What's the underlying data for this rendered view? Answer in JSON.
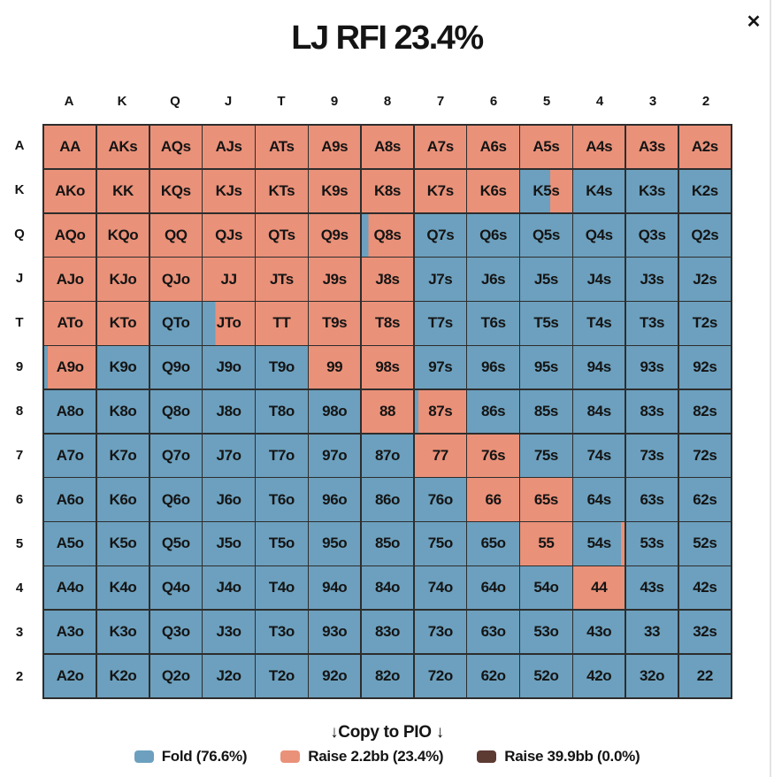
{
  "window": {
    "close_label": "✕"
  },
  "title": "LJ RFI 23.4%",
  "grid": {
    "column_headers": [
      "A",
      "K",
      "Q",
      "J",
      "T",
      "9",
      "8",
      "7",
      "6",
      "5",
      "4",
      "3",
      "2"
    ],
    "row_headers": [
      "A",
      "K",
      "Q",
      "J",
      "T",
      "9",
      "8",
      "7",
      "6",
      "5",
      "4",
      "3",
      "2"
    ],
    "colors": {
      "fold": "#6CA0BE",
      "raise_small": "#EA9179",
      "raise_big": "#5D3A32",
      "gridline": "#2d2d2d"
    },
    "rows": [
      {
        "row": "A",
        "cells": [
          {
            "label": "AA",
            "raise": 1
          },
          {
            "label": "AKs",
            "raise": 1
          },
          {
            "label": "AQs",
            "raise": 1
          },
          {
            "label": "AJs",
            "raise": 1
          },
          {
            "label": "ATs",
            "raise": 1
          },
          {
            "label": "A9s",
            "raise": 1
          },
          {
            "label": "A8s",
            "raise": 1
          },
          {
            "label": "A7s",
            "raise": 1
          },
          {
            "label": "A6s",
            "raise": 1
          },
          {
            "label": "A5s",
            "raise": 1
          },
          {
            "label": "A4s",
            "raise": 1
          },
          {
            "label": "A3s",
            "raise": 1
          },
          {
            "label": "A2s",
            "raise": 1
          }
        ]
      },
      {
        "row": "K",
        "cells": [
          {
            "label": "AKo",
            "raise": 1
          },
          {
            "label": "KK",
            "raise": 1
          },
          {
            "label": "KQs",
            "raise": 1
          },
          {
            "label": "KJs",
            "raise": 1
          },
          {
            "label": "KTs",
            "raise": 1
          },
          {
            "label": "K9s",
            "raise": 1
          },
          {
            "label": "K8s",
            "raise": 1
          },
          {
            "label": "K7s",
            "raise": 1
          },
          {
            "label": "K6s",
            "raise": 1
          },
          {
            "label": "K5s",
            "raise": 0.42
          },
          {
            "label": "K4s",
            "raise": 0
          },
          {
            "label": "K3s",
            "raise": 0
          },
          {
            "label": "K2s",
            "raise": 0
          }
        ]
      },
      {
        "row": "Q",
        "cells": [
          {
            "label": "AQo",
            "raise": 1
          },
          {
            "label": "KQo",
            "raise": 1
          },
          {
            "label": "QQ",
            "raise": 1
          },
          {
            "label": "QJs",
            "raise": 1
          },
          {
            "label": "QTs",
            "raise": 1
          },
          {
            "label": "Q9s",
            "raise": 1
          },
          {
            "label": "Q8s",
            "raise": 0.87
          },
          {
            "label": "Q7s",
            "raise": 0
          },
          {
            "label": "Q6s",
            "raise": 0
          },
          {
            "label": "Q5s",
            "raise": 0
          },
          {
            "label": "Q4s",
            "raise": 0
          },
          {
            "label": "Q3s",
            "raise": 0
          },
          {
            "label": "Q2s",
            "raise": 0
          }
        ]
      },
      {
        "row": "J",
        "cells": [
          {
            "label": "AJo",
            "raise": 1
          },
          {
            "label": "KJo",
            "raise": 1
          },
          {
            "label": "QJo",
            "raise": 1
          },
          {
            "label": "JJ",
            "raise": 1
          },
          {
            "label": "JTs",
            "raise": 1
          },
          {
            "label": "J9s",
            "raise": 1
          },
          {
            "label": "J8s",
            "raise": 1
          },
          {
            "label": "J7s",
            "raise": 0
          },
          {
            "label": "J6s",
            "raise": 0
          },
          {
            "label": "J5s",
            "raise": 0
          },
          {
            "label": "J4s",
            "raise": 0
          },
          {
            "label": "J3s",
            "raise": 0
          },
          {
            "label": "J2s",
            "raise": 0
          }
        ]
      },
      {
        "row": "T",
        "cells": [
          {
            "label": "ATo",
            "raise": 1
          },
          {
            "label": "KTo",
            "raise": 1
          },
          {
            "label": "QTo",
            "raise": 0
          },
          {
            "label": "JTo",
            "raise": 0.75
          },
          {
            "label": "TT",
            "raise": 1
          },
          {
            "label": "T9s",
            "raise": 1
          },
          {
            "label": "T8s",
            "raise": 1
          },
          {
            "label": "T7s",
            "raise": 0
          },
          {
            "label": "T6s",
            "raise": 0
          },
          {
            "label": "T5s",
            "raise": 0
          },
          {
            "label": "T4s",
            "raise": 0
          },
          {
            "label": "T3s",
            "raise": 0
          },
          {
            "label": "T2s",
            "raise": 0
          }
        ]
      },
      {
        "row": "9",
        "cells": [
          {
            "label": "A9o",
            "raise": 0.93
          },
          {
            "label": "K9o",
            "raise": 0
          },
          {
            "label": "Q9o",
            "raise": 0
          },
          {
            "label": "J9o",
            "raise": 0
          },
          {
            "label": "T9o",
            "raise": 0
          },
          {
            "label": "99",
            "raise": 1
          },
          {
            "label": "98s",
            "raise": 1
          },
          {
            "label": "97s",
            "raise": 0
          },
          {
            "label": "96s",
            "raise": 0
          },
          {
            "label": "95s",
            "raise": 0
          },
          {
            "label": "94s",
            "raise": 0
          },
          {
            "label": "93s",
            "raise": 0
          },
          {
            "label": "92s",
            "raise": 0
          }
        ]
      },
      {
        "row": "8",
        "cells": [
          {
            "label": "A8o",
            "raise": 0
          },
          {
            "label": "K8o",
            "raise": 0
          },
          {
            "label": "Q8o",
            "raise": 0
          },
          {
            "label": "J8o",
            "raise": 0
          },
          {
            "label": "T8o",
            "raise": 0
          },
          {
            "label": "98o",
            "raise": 0
          },
          {
            "label": "88",
            "raise": 1
          },
          {
            "label": "87s",
            "raise": 0.93
          },
          {
            "label": "86s",
            "raise": 0
          },
          {
            "label": "85s",
            "raise": 0
          },
          {
            "label": "84s",
            "raise": 0
          },
          {
            "label": "83s",
            "raise": 0
          },
          {
            "label": "82s",
            "raise": 0
          }
        ]
      },
      {
        "row": "7",
        "cells": [
          {
            "label": "A7o",
            "raise": 0
          },
          {
            "label": "K7o",
            "raise": 0
          },
          {
            "label": "Q7o",
            "raise": 0
          },
          {
            "label": "J7o",
            "raise": 0
          },
          {
            "label": "T7o",
            "raise": 0
          },
          {
            "label": "97o",
            "raise": 0
          },
          {
            "label": "87o",
            "raise": 0
          },
          {
            "label": "77",
            "raise": 1
          },
          {
            "label": "76s",
            "raise": 1
          },
          {
            "label": "75s",
            "raise": 0
          },
          {
            "label": "74s",
            "raise": 0
          },
          {
            "label": "73s",
            "raise": 0
          },
          {
            "label": "72s",
            "raise": 0
          }
        ]
      },
      {
        "row": "6",
        "cells": [
          {
            "label": "A6o",
            "raise": 0
          },
          {
            "label": "K6o",
            "raise": 0
          },
          {
            "label": "Q6o",
            "raise": 0
          },
          {
            "label": "J6o",
            "raise": 0
          },
          {
            "label": "T6o",
            "raise": 0
          },
          {
            "label": "96o",
            "raise": 0
          },
          {
            "label": "86o",
            "raise": 0
          },
          {
            "label": "76o",
            "raise": 0
          },
          {
            "label": "66",
            "raise": 1
          },
          {
            "label": "65s",
            "raise": 1
          },
          {
            "label": "64s",
            "raise": 0
          },
          {
            "label": "63s",
            "raise": 0
          },
          {
            "label": "62s",
            "raise": 0
          }
        ]
      },
      {
        "row": "5",
        "cells": [
          {
            "label": "A5o",
            "raise": 0
          },
          {
            "label": "K5o",
            "raise": 0
          },
          {
            "label": "Q5o",
            "raise": 0
          },
          {
            "label": "J5o",
            "raise": 0
          },
          {
            "label": "T5o",
            "raise": 0
          },
          {
            "label": "95o",
            "raise": 0
          },
          {
            "label": "85o",
            "raise": 0
          },
          {
            "label": "75o",
            "raise": 0
          },
          {
            "label": "65o",
            "raise": 0
          },
          {
            "label": "55",
            "raise": 1
          },
          {
            "label": "54s",
            "raise": 0.07
          },
          {
            "label": "53s",
            "raise": 0
          },
          {
            "label": "52s",
            "raise": 0
          }
        ]
      },
      {
        "row": "4",
        "cells": [
          {
            "label": "A4o",
            "raise": 0
          },
          {
            "label": "K4o",
            "raise": 0
          },
          {
            "label": "Q4o",
            "raise": 0
          },
          {
            "label": "J4o",
            "raise": 0
          },
          {
            "label": "T4o",
            "raise": 0
          },
          {
            "label": "94o",
            "raise": 0
          },
          {
            "label": "84o",
            "raise": 0
          },
          {
            "label": "74o",
            "raise": 0
          },
          {
            "label": "64o",
            "raise": 0
          },
          {
            "label": "54o",
            "raise": 0
          },
          {
            "label": "44",
            "raise": 1
          },
          {
            "label": "43s",
            "raise": 0
          },
          {
            "label": "42s",
            "raise": 0
          }
        ]
      },
      {
        "row": "3",
        "cells": [
          {
            "label": "A3o",
            "raise": 0
          },
          {
            "label": "K3o",
            "raise": 0
          },
          {
            "label": "Q3o",
            "raise": 0
          },
          {
            "label": "J3o",
            "raise": 0
          },
          {
            "label": "T3o",
            "raise": 0
          },
          {
            "label": "93o",
            "raise": 0
          },
          {
            "label": "83o",
            "raise": 0
          },
          {
            "label": "73o",
            "raise": 0
          },
          {
            "label": "63o",
            "raise": 0
          },
          {
            "label": "53o",
            "raise": 0
          },
          {
            "label": "43o",
            "raise": 0
          },
          {
            "label": "33",
            "raise": 0
          },
          {
            "label": "32s",
            "raise": 0
          }
        ]
      },
      {
        "row": "2",
        "cells": [
          {
            "label": "A2o",
            "raise": 0
          },
          {
            "label": "K2o",
            "raise": 0
          },
          {
            "label": "Q2o",
            "raise": 0
          },
          {
            "label": "J2o",
            "raise": 0
          },
          {
            "label": "T2o",
            "raise": 0
          },
          {
            "label": "92o",
            "raise": 0
          },
          {
            "label": "82o",
            "raise": 0
          },
          {
            "label": "72o",
            "raise": 0
          },
          {
            "label": "62o",
            "raise": 0
          },
          {
            "label": "52o",
            "raise": 0
          },
          {
            "label": "42o",
            "raise": 0
          },
          {
            "label": "32o",
            "raise": 0
          },
          {
            "label": "22",
            "raise": 0
          }
        ]
      }
    ]
  },
  "copy_to_pio": {
    "label": "↓Copy to PIO ↓"
  },
  "legend": [
    {
      "name": "fold",
      "label": "Fold (76.6%)",
      "color": "#6CA0BE"
    },
    {
      "name": "raise-2-2bb",
      "label": "Raise 2.2bb (23.4%)",
      "color": "#EA9179"
    },
    {
      "name": "raise-39-9bb",
      "label": "Raise 39.9bb (0.0%)",
      "color": "#5D3A32"
    }
  ]
}
